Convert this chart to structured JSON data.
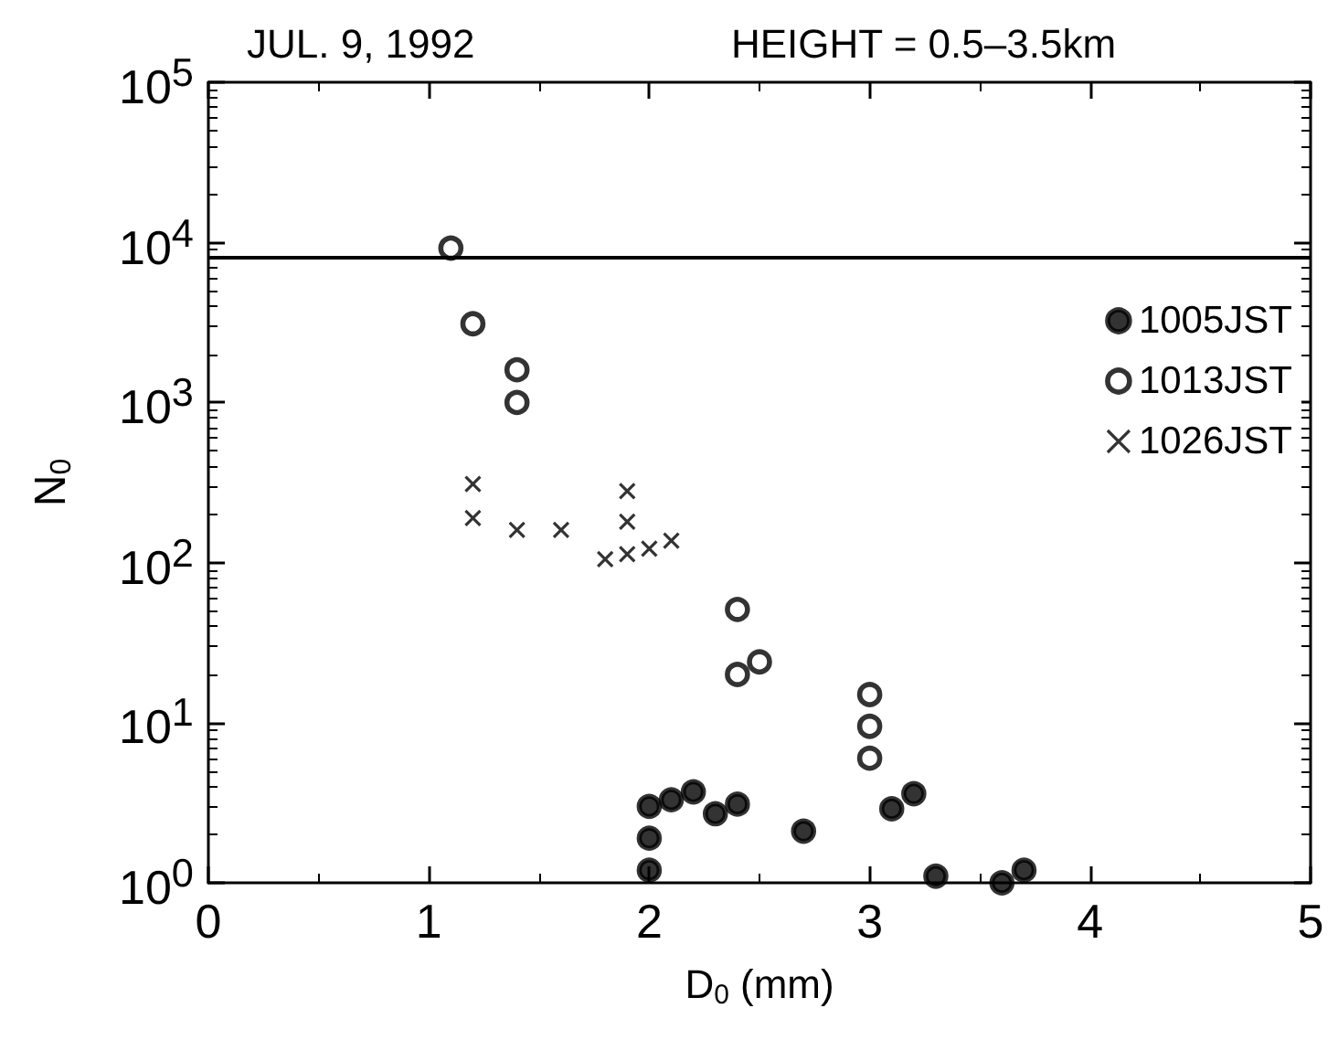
{
  "chart_data": {
    "type": "scatter",
    "title": "JUL. 9, 1992",
    "subtitle": "HEIGHT = 0.5–3.5km",
    "xlabel": "D$_{0}$ (mm)",
    "ylabel": "N$_{0}$",
    "log": "y",
    "grid": false,
    "legend": "right",
    "xlim": [
      0,
      5
    ],
    "xticks": [
      0,
      1,
      2,
      3,
      4,
      5
    ],
    "ylim": [
      1,
      100000
    ],
    "yticks": [
      {
        "value": 1,
        "label": "10$^{0}$"
      },
      {
        "value": 10,
        "label": "10$^{1}$"
      },
      {
        "value": 100,
        "label": "10$^{2}$"
      },
      {
        "value": 1000,
        "label": "10$^{3}$"
      },
      {
        "value": 10000,
        "label": "10$^{4}$"
      },
      {
        "value": 100000,
        "label": "10$^{5}$"
      }
    ],
    "ref_lines": [
      {
        "axis": "y",
        "value": 8000,
        "color": "#000000"
      }
    ],
    "series": [
      {
        "name": "1005JST",
        "color": "#000000",
        "marker": "circle",
        "x": [
          2.0,
          2.0,
          2.0,
          2.1,
          2.2,
          2.3,
          2.4,
          2.7,
          3.1,
          3.2,
          3.3,
          3.6,
          3.7
        ],
        "values": [
          3.0,
          1.9,
          1.2,
          3.3,
          3.7,
          2.7,
          3.1,
          2.1,
          2.9,
          3.6,
          1.1,
          1.0,
          1.2
        ]
      },
      {
        "name": "1013JST",
        "color": "#ffffff",
        "marker": "circle",
        "x": [
          1.1,
          1.2,
          1.4,
          1.4,
          2.4,
          2.4,
          2.5,
          3.0,
          3.0,
          3.0
        ],
        "values": [
          9200,
          3100,
          1600,
          1000,
          51,
          20,
          24,
          15,
          9.5,
          6
        ]
      },
      {
        "name": "1026JST",
        "color": "#000000",
        "marker": "cross",
        "x": [
          1.2,
          1.2,
          1.4,
          1.6,
          1.8,
          1.9,
          1.9,
          1.9,
          2.0,
          2.1
        ],
        "values": [
          310,
          190,
          160,
          160,
          105,
          280,
          180,
          113,
          122,
          137
        ]
      }
    ]
  }
}
